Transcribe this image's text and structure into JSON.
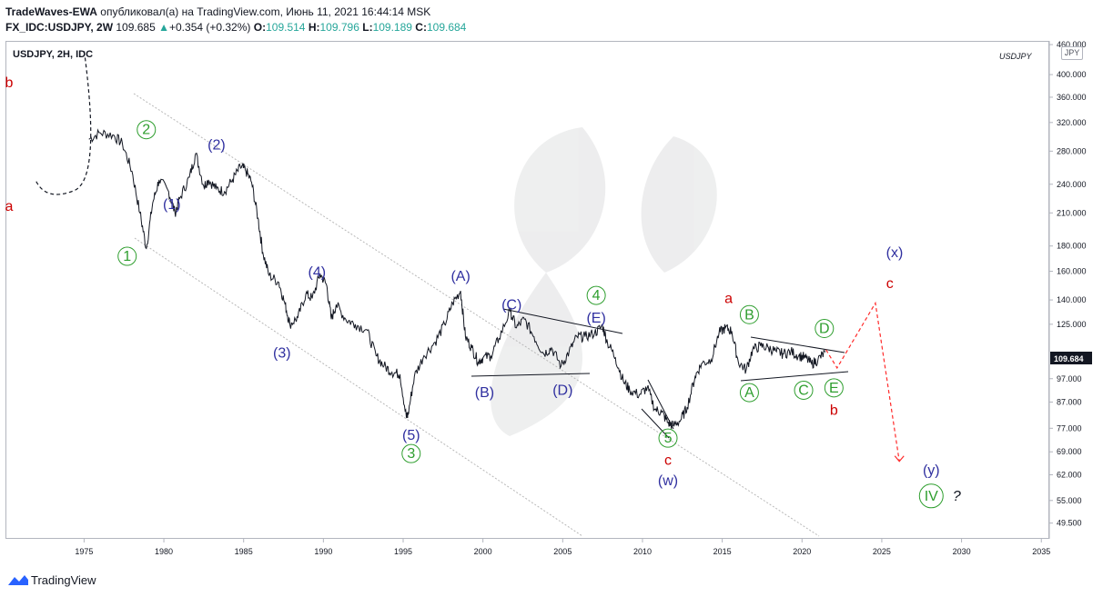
{
  "header": {
    "author": "TradeWaves-EWA",
    "published": "опубликовал(а) на TradingView.com, Июнь 11, 2021 16:44:14 MSK",
    "symbol": "FX_IDC:USDJPY, 2W",
    "last": "109.685",
    "change_arrow": "▲",
    "change": "+0.354 (+0.32%)",
    "o_label": "O:",
    "o": "109.514",
    "h_label": "H:",
    "h": "109.796",
    "l_label": "L:",
    "l": "109.189",
    "c_label": "C:",
    "c": "109.684"
  },
  "pane": {
    "title": "USDJPY, 2H, IDC",
    "symbol_watermark": "USDJPY",
    "currency": "JPY"
  },
  "footer": {
    "brand": "TradingView"
  },
  "colors": {
    "green": "#26a69a",
    "red": "#cc0000",
    "blue": "#3030a0",
    "wave_green": "#2e9e2e",
    "price_tag": "#131722"
  },
  "chart_data": {
    "type": "line",
    "title": "USDJPY, 2H, IDC",
    "scale": "log",
    "ylim": [
      46,
      468
    ],
    "xlim": [
      1970.3,
      2035.5
    ],
    "x_ticks": [
      1975,
      1980,
      1985,
      1990,
      1995,
      2000,
      2005,
      2010,
      2015,
      2020,
      2025,
      2030,
      2035
    ],
    "x_tick_labels": [
      "1975",
      "1980",
      "1985",
      "1990",
      "1995",
      "2000",
      "2005",
      "2010",
      "2015",
      "2020",
      "2025",
      "2030",
      "2035"
    ],
    "y_ticks": [
      49.5,
      55,
      62,
      69,
      77,
      87,
      97,
      125,
      140,
      160,
      180,
      210,
      240,
      280,
      320,
      360,
      400,
      460
    ],
    "y_tick_labels": [
      "49.500",
      "55.000",
      "62.000",
      "69.000",
      "77.000",
      "87.000",
      "97.000",
      "125.000",
      "140.000",
      "160.000",
      "180.000",
      "210.000",
      "240.000",
      "280.000",
      "320.000",
      "360.000",
      "400.000",
      "460.000"
    ],
    "last_price_label": "109.684",
    "series": [
      {
        "name": "USDJPY",
        "x": [
          1975.3,
          1976.0,
          1976.8,
          1977.4,
          1978.0,
          1978.5,
          1978.9,
          1979.3,
          1979.7,
          1980.3,
          1980.7,
          1981.0,
          1981.6,
          1982.0,
          1982.5,
          1982.8,
          1983.3,
          1983.8,
          1984.3,
          1984.8,
          1985.1,
          1985.5,
          1985.9,
          1986.2,
          1986.6,
          1987.2,
          1987.6,
          1987.9,
          1988.4,
          1988.9,
          1989.3,
          1989.8,
          1990.2,
          1990.5,
          1990.8,
          1991.4,
          1992.0,
          1992.7,
          1993.3,
          1993.8,
          1994.3,
          1994.8,
          1995.2,
          1995.3,
          1995.7,
          1996.3,
          1997.0,
          1997.6,
          1998.1,
          1998.6,
          1998.9,
          1999.3,
          1999.7,
          2000.0,
          2000.5,
          2001.0,
          2001.7,
          2002.1,
          2002.6,
          2003.2,
          2003.8,
          2004.3,
          2004.9,
          2005.4,
          2005.9,
          2006.4,
          2007.0,
          2007.5,
          2007.8,
          2008.3,
          2008.8,
          2009.2,
          2009.8,
          2010.3,
          2010.8,
          2011.2,
          2011.6,
          2011.9,
          2012.4,
          2012.8,
          2013.3,
          2013.7,
          2014.3,
          2014.8,
          2015.2,
          2015.6,
          2016.0,
          2016.5,
          2016.9,
          2017.4,
          2017.9,
          2018.4,
          2018.8,
          2019.3,
          2019.8,
          2020.2,
          2020.6,
          2021.0,
          2021.45
        ],
        "values": [
          296,
          305,
          302,
          290,
          255,
          210,
          178,
          220,
          245,
          232,
          210,
          225,
          248,
          277,
          238,
          245,
          235,
          232,
          245,
          260,
          257,
          242,
          205,
          175,
          157,
          152,
          137,
          125,
          129,
          144,
          141,
          158,
          150,
          128,
          137,
          128,
          125,
          122,
          108,
          103,
          100,
          99,
          81,
          82,
          98,
          108,
          115,
          125,
          138,
          146,
          118,
          112,
          105,
          107,
          108,
          117,
          133,
          123,
          128,
          118,
          109,
          112,
          103,
          110,
          118,
          118,
          120,
          124,
          115,
          107,
          96,
          92,
          90,
          93,
          84,
          83,
          79,
          78,
          80,
          85,
          98,
          104,
          106,
          120,
          123,
          121,
          105,
          101,
          111,
          113,
          112,
          110,
          109,
          110,
          108,
          107,
          104,
          106,
          109.68
        ]
      }
    ],
    "projection": {
      "x": [
        1972.0,
        1973.8,
        1975.0
      ],
      "values": [
        237,
        233,
        272
      ],
      "path_x": [
        2021.5,
        2022.2,
        2024.6,
        2026.1
      ],
      "path_values": [
        111,
        102,
        138,
        66
      ]
    },
    "wave_labels": [
      {
        "text": "b",
        "x": 1970.3,
        "price": 377,
        "color": "red"
      },
      {
        "text": "a",
        "x": 1970.3,
        "price": 212,
        "color": "red"
      },
      {
        "text": "2",
        "x": 1978.9,
        "price": 303,
        "color": "green",
        "circled": true
      },
      {
        "text": "(2)",
        "x": 1983.3,
        "price": 282,
        "color": "blue"
      },
      {
        "text": "(1)",
        "x": 1980.5,
        "price": 214,
        "color": "blue"
      },
      {
        "text": "1",
        "x": 1977.7,
        "price": 168,
        "color": "green",
        "circled": true
      },
      {
        "text": "(4)",
        "x": 1989.6,
        "price": 156,
        "color": "blue"
      },
      {
        "text": "(3)",
        "x": 1987.4,
        "price": 107,
        "color": "blue"
      },
      {
        "text": "(A)",
        "x": 1998.6,
        "price": 153,
        "color": "blue"
      },
      {
        "text": "(C)",
        "x": 2001.8,
        "price": 134,
        "color": "blue"
      },
      {
        "text": "4",
        "x": 2007.1,
        "price": 140,
        "color": "green",
        "circled": true
      },
      {
        "text": "(E)",
        "x": 2007.1,
        "price": 126,
        "color": "blue"
      },
      {
        "text": "(B)",
        "x": 2000.1,
        "price": 89,
        "color": "blue"
      },
      {
        "text": "(D)",
        "x": 2005.0,
        "price": 90,
        "color": "blue"
      },
      {
        "text": "(5)",
        "x": 1995.5,
        "price": 73,
        "color": "blue"
      },
      {
        "text": "3",
        "x": 1995.5,
        "price": 67,
        "color": "green",
        "circled": true
      },
      {
        "text": "5",
        "x": 2011.6,
        "price": 72,
        "color": "green",
        "circled": true
      },
      {
        "text": "c",
        "x": 2011.6,
        "price": 65,
        "color": "red"
      },
      {
        "text": "(w)",
        "x": 2011.6,
        "price": 59,
        "color": "blue"
      },
      {
        "text": "a",
        "x": 2015.4,
        "price": 138,
        "color": "red"
      },
      {
        "text": "B",
        "x": 2016.7,
        "price": 128,
        "color": "green",
        "circled": true
      },
      {
        "text": "D",
        "x": 2021.4,
        "price": 120,
        "color": "green",
        "circled": true
      },
      {
        "text": "A",
        "x": 2016.7,
        "price": 89,
        "color": "green",
        "circled": true
      },
      {
        "text": "C",
        "x": 2020.1,
        "price": 90,
        "color": "green",
        "circled": true
      },
      {
        "text": "E",
        "x": 2022.0,
        "price": 91,
        "color": "green",
        "circled": true
      },
      {
        "text": "b",
        "x": 2022.0,
        "price": 82,
        "color": "red"
      },
      {
        "text": "(x)",
        "x": 2025.8,
        "price": 171,
        "color": "blue"
      },
      {
        "text": "c",
        "x": 2025.5,
        "price": 148,
        "color": "red"
      },
      {
        "text": "(y)",
        "x": 2028.1,
        "price": 62,
        "color": "blue"
      },
      {
        "text": "IV",
        "x": 2028.1,
        "price": 55,
        "color": "green",
        "circled": true
      },
      {
        "text": "?",
        "x": 2029.7,
        "price": 55,
        "color": "black"
      }
    ]
  }
}
